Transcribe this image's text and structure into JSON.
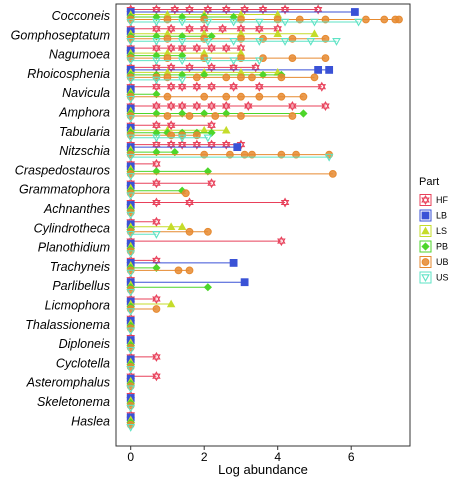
{
  "chart_data": {
    "type": "scatter",
    "xlabel": "Log abundance",
    "xlim": [
      -0.4,
      7.6
    ],
    "x_ticks": [
      0,
      2,
      4,
      6
    ],
    "categories": [
      "Cocconeis",
      "Gomphoseptatum",
      "Nagumoea",
      "Rhoicosphenia",
      "Navicula",
      "Amphora",
      "Tabularia",
      "Nitzschia",
      "Craspedostauros",
      "Grammatophora",
      "Achnanthes",
      "Cylindrotheca",
      "Planothidium",
      "Trachyneis",
      "Parlibellus",
      "Licmophora",
      "Thalassionema",
      "Diploneis",
      "Cyclotella",
      "Asteromphalus",
      "Skeletonema",
      "Haslea"
    ],
    "legend": {
      "title": "Part",
      "position": "right"
    },
    "series": [
      {
        "name": "HF",
        "color": "#e8405a",
        "marker": "hexagram",
        "points": [
          [
            "Cocconeis",
            [
              0,
              0.7,
              1.2,
              1.6,
              2.1,
              2.6,
              3.1,
              3.6,
              4.2,
              5.1
            ]
          ],
          [
            "Gomphoseptatum",
            [
              0,
              0.7,
              1.1,
              1.6,
              2.0,
              2.5,
              3.0,
              3.5,
              4.0
            ]
          ],
          [
            "Nagumoea",
            [
              0,
              0.7,
              1.1,
              1.4,
              1.8,
              2.2,
              2.6,
              3.0
            ]
          ],
          [
            "Rhoicosphenia",
            [
              0,
              0.7,
              1.1,
              1.6,
              2.2,
              2.8,
              3.4
            ]
          ],
          [
            "Navicula",
            [
              0,
              0.7,
              1.1,
              1.4,
              1.8,
              2.2,
              2.8,
              3.5,
              5.2
            ]
          ],
          [
            "Amphora",
            [
              0,
              0.7,
              1.1,
              1.4,
              1.8,
              2.2,
              2.6,
              3.2,
              4.4,
              5.3
            ]
          ],
          [
            "Tabularia",
            [
              0,
              0.7,
              1.1,
              2.2
            ]
          ],
          [
            "Nitzschia",
            [
              0,
              0.7,
              1.1,
              1.4,
              1.8,
              2.2,
              2.6,
              3.0
            ]
          ],
          [
            "Craspedostauros",
            [
              0,
              0.7
            ]
          ],
          [
            "Grammatophora",
            [
              0,
              0.7,
              2.2
            ]
          ],
          [
            "Achnanthes",
            [
              0,
              0.7,
              1.6,
              4.2
            ]
          ],
          [
            "Cylindrotheca",
            [
              0,
              0.7
            ]
          ],
          [
            "Planothidium",
            [
              0,
              4.1
            ]
          ],
          [
            "Trachyneis",
            [
              0,
              0.7
            ]
          ],
          [
            "Parlibellus",
            [
              0
            ]
          ],
          [
            "Licmophora",
            [
              0,
              0.7
            ]
          ],
          [
            "Thalassionema",
            [
              0
            ]
          ],
          [
            "Diploneis",
            [
              0
            ]
          ],
          [
            "Cyclotella",
            [
              0,
              0.7
            ]
          ],
          [
            "Asteromphalus",
            [
              0,
              0.7
            ]
          ],
          [
            "Skeletonema",
            [
              0
            ]
          ],
          [
            "Haslea",
            [
              0
            ]
          ]
        ]
      },
      {
        "name": "LB",
        "color": "#3a52d6",
        "marker": "square",
        "points": [
          [
            "Cocconeis",
            [
              0,
              6.1
            ]
          ],
          [
            "Gomphoseptatum",
            [
              0
            ]
          ],
          [
            "Nagumoea",
            [
              0
            ]
          ],
          [
            "Rhoicosphenia",
            [
              0,
              5.1,
              5.4
            ]
          ],
          [
            "Navicula",
            [
              0
            ]
          ],
          [
            "Amphora",
            [
              0
            ]
          ],
          [
            "Tabularia",
            [
              0
            ]
          ],
          [
            "Nitzschia",
            [
              0,
              2.9
            ]
          ],
          [
            "Craspedostauros",
            [
              0
            ]
          ],
          [
            "Grammatophora",
            [
              0
            ]
          ],
          [
            "Achnanthes",
            [
              0
            ]
          ],
          [
            "Cylindrotheca",
            [
              0
            ]
          ],
          [
            "Planothidium",
            [
              0
            ]
          ],
          [
            "Trachyneis",
            [
              0,
              2.8
            ]
          ],
          [
            "Parlibellus",
            [
              0,
              3.1
            ]
          ],
          [
            "Licmophora",
            [
              0
            ]
          ],
          [
            "Thalassionema",
            [
              0
            ]
          ],
          [
            "Diploneis",
            [
              0
            ]
          ],
          [
            "Cyclotella",
            [
              0
            ]
          ],
          [
            "Asteromphalus",
            [
              0
            ]
          ],
          [
            "Skeletonema",
            [
              0
            ]
          ],
          [
            "Haslea",
            [
              0
            ]
          ]
        ]
      },
      {
        "name": "LS",
        "color": "#c5dc2a",
        "marker": "triangle",
        "points": [
          [
            "Cocconeis",
            [
              0,
              1.0,
              2.0,
              3.0,
              4.0
            ]
          ],
          [
            "Gomphoseptatum",
            [
              0,
              1.0,
              2.0,
              3.0,
              4.0,
              5.0
            ]
          ],
          [
            "Nagumoea",
            [
              0,
              1.0,
              2.0,
              3.0
            ]
          ],
          [
            "Rhoicosphenia",
            [
              0,
              1.0,
              2.0,
              3.0,
              4.0
            ]
          ],
          [
            "Navicula",
            [
              0
            ]
          ],
          [
            "Amphora",
            [
              0
            ]
          ],
          [
            "Tabularia",
            [
              0,
              1.0,
              2.0,
              2.6
            ]
          ],
          [
            "Nitzschia",
            [
              0
            ]
          ],
          [
            "Craspedostauros",
            [
              0
            ]
          ],
          [
            "Grammatophora",
            [
              0
            ]
          ],
          [
            "Achnanthes",
            [
              0
            ]
          ],
          [
            "Cylindrotheca",
            [
              0,
              1.1,
              1.4
            ]
          ],
          [
            "Planothidium",
            [
              0
            ]
          ],
          [
            "Trachyneis",
            [
              0
            ]
          ],
          [
            "Parlibellus",
            [
              0
            ]
          ],
          [
            "Licmophora",
            [
              0,
              1.1
            ]
          ],
          [
            "Thalassionema",
            [
              0
            ]
          ],
          [
            "Diploneis",
            [
              0
            ]
          ],
          [
            "Cyclotella",
            [
              0
            ]
          ],
          [
            "Asteromphalus",
            [
              0
            ]
          ],
          [
            "Skeletonema",
            [
              0
            ]
          ],
          [
            "Haslea",
            [
              0
            ]
          ]
        ]
      },
      {
        "name": "PB",
        "color": "#4dd62a",
        "marker": "diamond",
        "points": [
          [
            "Cocconeis",
            [
              0,
              0.7,
              1.4,
              2.0,
              2.8
            ]
          ],
          [
            "Gomphoseptatum",
            [
              0,
              0.7,
              1.4,
              2.2
            ]
          ],
          [
            "Nagumoea",
            [
              0,
              0.7,
              1.4
            ]
          ],
          [
            "Rhoicosphenia",
            [
              0,
              0.7,
              1.4,
              2.0,
              3.6,
              4.1
            ]
          ],
          [
            "Navicula",
            [
              0,
              0.7
            ]
          ],
          [
            "Amphora",
            [
              0,
              0.7,
              1.4,
              2.0,
              2.6,
              4.7
            ]
          ],
          [
            "Tabularia",
            [
              0,
              0.7,
              1.0,
              1.4,
              1.8,
              2.2
            ]
          ],
          [
            "Nitzschia",
            [
              0,
              0.7,
              1.2
            ]
          ],
          [
            "Craspedostauros",
            [
              0,
              0.7,
              2.1
            ]
          ],
          [
            "Grammatophora",
            [
              0,
              1.4
            ]
          ],
          [
            "Achnanthes",
            [
              0
            ]
          ],
          [
            "Cylindrotheca",
            [
              0
            ]
          ],
          [
            "Planothidium",
            [
              0
            ]
          ],
          [
            "Trachyneis",
            [
              0,
              0.7
            ]
          ],
          [
            "Parlibellus",
            [
              0,
              2.1
            ]
          ],
          [
            "Licmophora",
            [
              0
            ]
          ],
          [
            "Thalassionema",
            [
              0
            ]
          ],
          [
            "Diploneis",
            [
              0
            ]
          ],
          [
            "Cyclotella",
            [
              0
            ]
          ],
          [
            "Asteromphalus",
            [
              0
            ]
          ],
          [
            "Skeletonema",
            [
              0
            ]
          ],
          [
            "Haslea",
            [
              0
            ]
          ]
        ]
      },
      {
        "name": "UB",
        "color": "#e68a30",
        "marker": "circle",
        "points": [
          [
            "Cocconeis",
            [
              0,
              1.0,
              2.0,
              3.0,
              4.0,
              4.6,
              5.3,
              6.4,
              6.9,
              7.2,
              7.3
            ]
          ],
          [
            "Gomphoseptatum",
            [
              0,
              1.0,
              2.0,
              3.0,
              3.6,
              4.4,
              5.3
            ]
          ],
          [
            "Nagumoea",
            [
              0,
              1.0,
              2.0,
              3.0,
              3.6,
              4.4,
              5.3
            ]
          ],
          [
            "Rhoicosphenia",
            [
              0,
              0.7,
              1.0,
              1.8,
              2.6,
              3.0,
              3.3,
              4.1,
              5.0
            ]
          ],
          [
            "Navicula",
            [
              0,
              1.0,
              2.0,
              2.6,
              3.0,
              3.5,
              4.1,
              4.7
            ]
          ],
          [
            "Amphora",
            [
              0,
              1.0,
              1.6,
              2.3,
              3.0,
              4.4
            ]
          ],
          [
            "Tabularia",
            [
              0,
              1.1,
              1.4,
              1.8
            ]
          ],
          [
            "Nitzschia",
            [
              0,
              2.0,
              2.7,
              3.1,
              3.3,
              4.1,
              4.5,
              5.4
            ]
          ],
          [
            "Craspedostauros",
            [
              0,
              5.5
            ]
          ],
          [
            "Grammatophora",
            [
              0,
              1.5
            ]
          ],
          [
            "Achnanthes",
            [
              0
            ]
          ],
          [
            "Cylindrotheca",
            [
              0,
              1.6,
              2.1
            ]
          ],
          [
            "Planothidium",
            [
              0
            ]
          ],
          [
            "Trachyneis",
            [
              0,
              1.3,
              1.6
            ]
          ],
          [
            "Parlibellus",
            [
              0
            ]
          ],
          [
            "Licmophora",
            [
              0,
              0.7
            ]
          ],
          [
            "Thalassionema",
            [
              0
            ]
          ],
          [
            "Diploneis",
            [
              0
            ]
          ],
          [
            "Cyclotella",
            [
              0
            ]
          ],
          [
            "Asteromphalus",
            [
              0
            ]
          ],
          [
            "Skeletonema",
            [
              0
            ]
          ],
          [
            "Haslea",
            [
              0
            ]
          ]
        ]
      },
      {
        "name": "US",
        "color": "#5ee3c5",
        "marker": "triangle-down",
        "points": [
          [
            "Cocconeis",
            [
              0,
              0.7,
              1.4,
              2.1,
              2.8,
              3.5,
              4.2,
              5.0,
              6.2
            ]
          ],
          [
            "Gomphoseptatum",
            [
              0,
              0.7,
              1.4,
              2.1,
              2.8,
              3.5,
              4.2,
              4.9,
              5.6
            ]
          ],
          [
            "Nagumoea",
            [
              0,
              0.7,
              1.4,
              2.1,
              2.8,
              3.5
            ]
          ],
          [
            "Rhoicosphenia",
            [
              0,
              0.7,
              1.4
            ]
          ],
          [
            "Navicula",
            [
              0
            ]
          ],
          [
            "Amphora",
            [
              0
            ]
          ],
          [
            "Tabularia",
            [
              0,
              0.7,
              1.4,
              2.1
            ]
          ],
          [
            "Nitzschia",
            [
              0,
              5.4
            ]
          ],
          [
            "Craspedostauros",
            [
              0
            ]
          ],
          [
            "Grammatophora",
            [
              0
            ]
          ],
          [
            "Achnanthes",
            [
              0
            ]
          ],
          [
            "Cylindrotheca",
            [
              0,
              0.7
            ]
          ],
          [
            "Planothidium",
            [
              0
            ]
          ],
          [
            "Trachyneis",
            [
              0
            ]
          ],
          [
            "Parlibellus",
            [
              0
            ]
          ],
          [
            "Licmophora",
            [
              0
            ]
          ],
          [
            "Thalassionema",
            [
              0
            ]
          ],
          [
            "Diploneis",
            [
              0
            ]
          ],
          [
            "Cyclotella",
            [
              0
            ]
          ],
          [
            "Asteromphalus",
            [
              0
            ]
          ],
          [
            "Skeletonema",
            [
              0
            ]
          ],
          [
            "Haslea",
            [
              0
            ]
          ]
        ]
      }
    ]
  }
}
